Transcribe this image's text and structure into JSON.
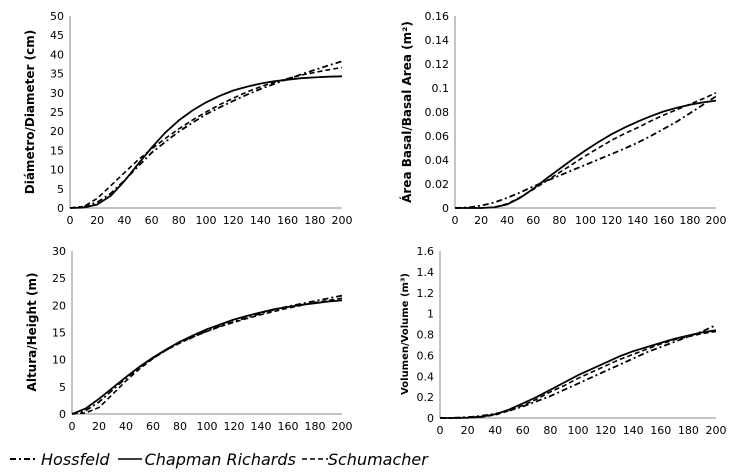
{
  "chart_data": [
    {
      "type": "line",
      "ylabel": "Diámetro/Diameter (cm)",
      "xlim": [
        0,
        200
      ],
      "ylim": [
        0,
        50
      ],
      "xticks": [
        "0",
        "20",
        "40",
        "60",
        "80",
        "100",
        "120",
        "140",
        "160",
        "180",
        "200"
      ],
      "yticks": [
        "0",
        "5",
        "10",
        "15",
        "20",
        "25",
        "30",
        "35",
        "40",
        "45",
        "50"
      ],
      "x": [
        0,
        10,
        20,
        30,
        40,
        50,
        60,
        70,
        80,
        90,
        100,
        110,
        120,
        130,
        140,
        150,
        160,
        170,
        180,
        190,
        200
      ],
      "series": [
        {
          "name": "Hossfeld",
          "values": [
            0,
            0.3,
            1.5,
            3.8,
            7.2,
            10.8,
            14.4,
            17.2,
            19.9,
            22.2,
            24.4,
            26.2,
            27.9,
            29.5,
            31.0,
            32.3,
            33.6,
            34.8,
            36.0,
            37.1,
            38.2
          ]
        },
        {
          "name": "Chapman Richards",
          "values": [
            0,
            0.1,
            0.9,
            3.2,
            7.0,
            11.4,
            15.7,
            19.6,
            22.8,
            25.4,
            27.5,
            29.2,
            30.6,
            31.6,
            32.4,
            33.0,
            33.4,
            33.8,
            34.0,
            34.2,
            34.3
          ]
        },
        {
          "name": "Schumacher",
          "values": [
            0,
            0.4,
            2.5,
            5.8,
            9.2,
            12.5,
            15.4,
            18.1,
            20.6,
            22.9,
            25.0,
            26.9,
            28.6,
            30.2,
            31.6,
            32.7,
            33.7,
            34.6,
            35.3,
            36.0,
            36.6
          ]
        }
      ]
    },
    {
      "type": "line",
      "ylabel": "Área Basal/Basal Area (m²)",
      "xlim": [
        0,
        200
      ],
      "ylim": [
        0,
        0.16
      ],
      "xticks": [
        "0",
        "20",
        "40",
        "60",
        "80",
        "100",
        "120",
        "140",
        "160",
        "180",
        "200"
      ],
      "yticks": [
        "0",
        "0.02",
        "0.04",
        "0.06",
        "0.08",
        "0.1",
        "0.12",
        "0.14",
        "0.16"
      ],
      "x": [
        0,
        10,
        20,
        30,
        40,
        50,
        60,
        70,
        80,
        90,
        100,
        110,
        120,
        130,
        140,
        150,
        160,
        170,
        180,
        190,
        200
      ],
      "series": [
        {
          "name": "Hossfeld",
          "values": [
            0,
            0.0004,
            0.002,
            0.0045,
            0.0085,
            0.013,
            0.018,
            0.0225,
            0.027,
            0.0315,
            0.036,
            0.0405,
            0.045,
            0.0495,
            0.0545,
            0.06,
            0.066,
            0.072,
            0.079,
            0.086,
            0.093
          ]
        },
        {
          "name": "Chapman Richards",
          "values": [
            0,
            0,
            0,
            0.0005,
            0.003,
            0.0085,
            0.016,
            0.0245,
            0.0325,
            0.0405,
            0.048,
            0.055,
            0.0615,
            0.067,
            0.072,
            0.0765,
            0.0805,
            0.0835,
            0.086,
            0.088,
            0.0895
          ]
        },
        {
          "name": "Schumacher",
          "values": [
            0,
            0,
            0,
            0.0007,
            0.0035,
            0.009,
            0.0155,
            0.0225,
            0.0295,
            0.0365,
            0.0435,
            0.05,
            0.0565,
            0.062,
            0.067,
            0.0725,
            0.0775,
            0.082,
            0.0865,
            0.091,
            0.096
          ]
        }
      ]
    },
    {
      "type": "line",
      "ylabel": "Altura/Height (m)",
      "xlim": [
        0,
        200
      ],
      "ylim": [
        0,
        30
      ],
      "xticks": [
        "0",
        "20",
        "40",
        "60",
        "80",
        "100",
        "120",
        "140",
        "160",
        "180",
        "200"
      ],
      "yticks": [
        "0",
        "5",
        "10",
        "15",
        "20",
        "25",
        "30"
      ],
      "x": [
        0,
        10,
        20,
        30,
        40,
        50,
        60,
        70,
        80,
        90,
        100,
        110,
        120,
        130,
        140,
        150,
        160,
        170,
        180,
        190,
        200
      ],
      "series": [
        {
          "name": "Hossfeld",
          "values": [
            0,
            0.6,
            2.2,
            4.4,
            6.6,
            8.6,
            10.3,
            11.8,
            13.1,
            14.2,
            15.3,
            16.2,
            17.0,
            17.8,
            18.5,
            19.2,
            19.8,
            20.3,
            20.8,
            21.3,
            21.8
          ]
        },
        {
          "name": "Chapman Richards",
          "values": [
            0,
            1.0,
            2.8,
            4.8,
            6.8,
            8.7,
            10.4,
            11.9,
            13.3,
            14.5,
            15.6,
            16.5,
            17.4,
            18.1,
            18.7,
            19.3,
            19.7,
            20.1,
            20.4,
            20.7,
            20.9
          ]
        },
        {
          "name": "Schumacher",
          "values": [
            0,
            0.2,
            1.2,
            3.6,
            6.1,
            8.3,
            10.2,
            11.8,
            13.1,
            14.2,
            15.2,
            16.1,
            16.9,
            17.6,
            18.3,
            18.9,
            19.5,
            20.0,
            20.5,
            20.9,
            21.3
          ]
        }
      ]
    },
    {
      "type": "line",
      "ylabel": "Volumen/Volume (m³)",
      "xlim": [
        0,
        200
      ],
      "ylim": [
        0,
        1.6
      ],
      "xticks": [
        "0",
        "20",
        "40",
        "60",
        "80",
        "100",
        "120",
        "140",
        "160",
        "180",
        "200"
      ],
      "yticks": [
        "0",
        "0.2",
        "0.4",
        "0.6",
        "0.8",
        "1",
        "1.2",
        "1.4",
        "1.6"
      ],
      "x": [
        0,
        10,
        20,
        30,
        40,
        50,
        60,
        70,
        80,
        90,
        100,
        110,
        120,
        130,
        140,
        150,
        160,
        170,
        180,
        190,
        200
      ],
      "series": [
        {
          "name": "Hossfeld",
          "values": [
            0,
            0.002,
            0.008,
            0.02,
            0.04,
            0.07,
            0.11,
            0.16,
            0.21,
            0.27,
            0.33,
            0.39,
            0.45,
            0.51,
            0.57,
            0.63,
            0.68,
            0.73,
            0.78,
            0.83,
            0.89
          ]
        },
        {
          "name": "Chapman Richards",
          "values": [
            0,
            0,
            0.003,
            0.012,
            0.035,
            0.08,
            0.14,
            0.2,
            0.27,
            0.34,
            0.41,
            0.47,
            0.53,
            0.59,
            0.64,
            0.68,
            0.72,
            0.76,
            0.79,
            0.82,
            0.84
          ]
        },
        {
          "name": "Schumacher",
          "values": [
            0,
            0,
            0.002,
            0.01,
            0.03,
            0.07,
            0.12,
            0.18,
            0.25,
            0.31,
            0.38,
            0.44,
            0.5,
            0.56,
            0.61,
            0.66,
            0.71,
            0.75,
            0.78,
            0.81,
            0.83
          ]
        }
      ]
    }
  ],
  "legend": {
    "items": [
      {
        "label": "Hossfeld",
        "style": "dash-dot"
      },
      {
        "label": "Chapman Richards",
        "style": "solid"
      },
      {
        "label": "Schumacher",
        "style": "dashed"
      }
    ]
  }
}
